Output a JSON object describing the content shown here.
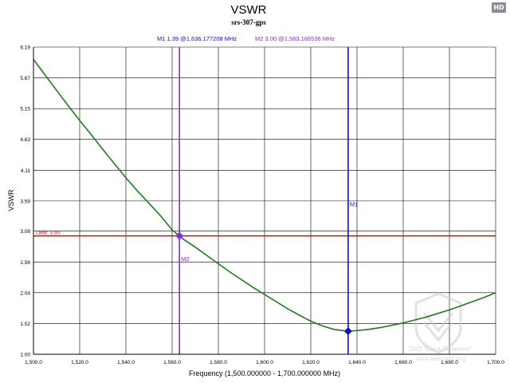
{
  "chart_data": {
    "type": "line",
    "title": "VSWR",
    "subtitle": "srs-307-gps",
    "xlabel": "Frequency (1,500.000000 - 1,700.000000 MHz)",
    "ylabel": "VSWR",
    "xlim": [
      1500,
      1700
    ],
    "ylim": [
      1.0,
      6.19
    ],
    "grid": true,
    "x_ticks": [
      1500,
      1520,
      1540,
      1560,
      1580,
      1600,
      1620,
      1640,
      1660,
      1680,
      1700
    ],
    "x_tick_labels": [
      "1,500.0",
      "1,520.0",
      "1,540.0",
      "1,560.0",
      "1,580.0",
      "1,600.0",
      "1,620.0",
      "1,640.0",
      "1,660.0",
      "1,680.0",
      "1,700.0"
    ],
    "y_ticks": [
      1.0,
      1.52,
      2.04,
      2.56,
      3.08,
      3.59,
      4.11,
      4.63,
      5.15,
      5.67,
      6.19
    ],
    "y_tick_labels": [
      "1.00",
      "1.52",
      "2.04",
      "2.56",
      "3.08",
      "3.59",
      "4.11",
      "4.63",
      "5.15",
      "5.67",
      "6.19"
    ],
    "series": [
      {
        "name": "VSWR",
        "color": "#1e7d1e",
        "x": [
          1500,
          1505,
          1510,
          1515,
          1520,
          1525,
          1530,
          1535,
          1540,
          1545,
          1550,
          1555,
          1560,
          1563.17,
          1565,
          1570,
          1575,
          1580,
          1585,
          1590,
          1595,
          1600,
          1605,
          1610,
          1615,
          1620,
          1625,
          1630,
          1636.18,
          1640,
          1645,
          1650,
          1655,
          1660,
          1665,
          1670,
          1675,
          1680,
          1685,
          1690,
          1695,
          1700
        ],
        "y": [
          5.98,
          5.72,
          5.46,
          5.2,
          4.95,
          4.71,
          4.46,
          4.22,
          3.98,
          3.76,
          3.55,
          3.34,
          3.1,
          3.0,
          2.94,
          2.81,
          2.67,
          2.53,
          2.39,
          2.26,
          2.13,
          2.01,
          1.89,
          1.77,
          1.66,
          1.56,
          1.48,
          1.42,
          1.39,
          1.4,
          1.42,
          1.45,
          1.49,
          1.53,
          1.58,
          1.63,
          1.69,
          1.75,
          1.82,
          1.89,
          1.96,
          2.04
        ]
      }
    ],
    "limit_line": {
      "label": "Limit: 3.00",
      "value": 3.0,
      "color": "#cc1111"
    },
    "markers": [
      {
        "name": "M1",
        "freq": 1636.177208,
        "value": 1.39,
        "color": "#1010c8"
      },
      {
        "name": "M2",
        "freq": 1563.166536,
        "value": 3.0,
        "color": "#8a2be2"
      }
    ],
    "marker_readout": [
      {
        "text": "M1   1.39 @1,636.177208 MHz",
        "color": "#1010c8"
      },
      {
        "text": "M2   3.00 @1,563.166536 MHz",
        "color": "#8a2be2"
      }
    ],
    "watermark": {
      "line1": "ЗАО \"Вига-Телеком\"",
      "line2": "viva-telecom.org"
    }
  },
  "badge": "HD",
  "colors": {
    "axis": "#000000",
    "grid": "#000000",
    "plot_bg": "#ffffff",
    "watermark": "#b4b9bf"
  }
}
